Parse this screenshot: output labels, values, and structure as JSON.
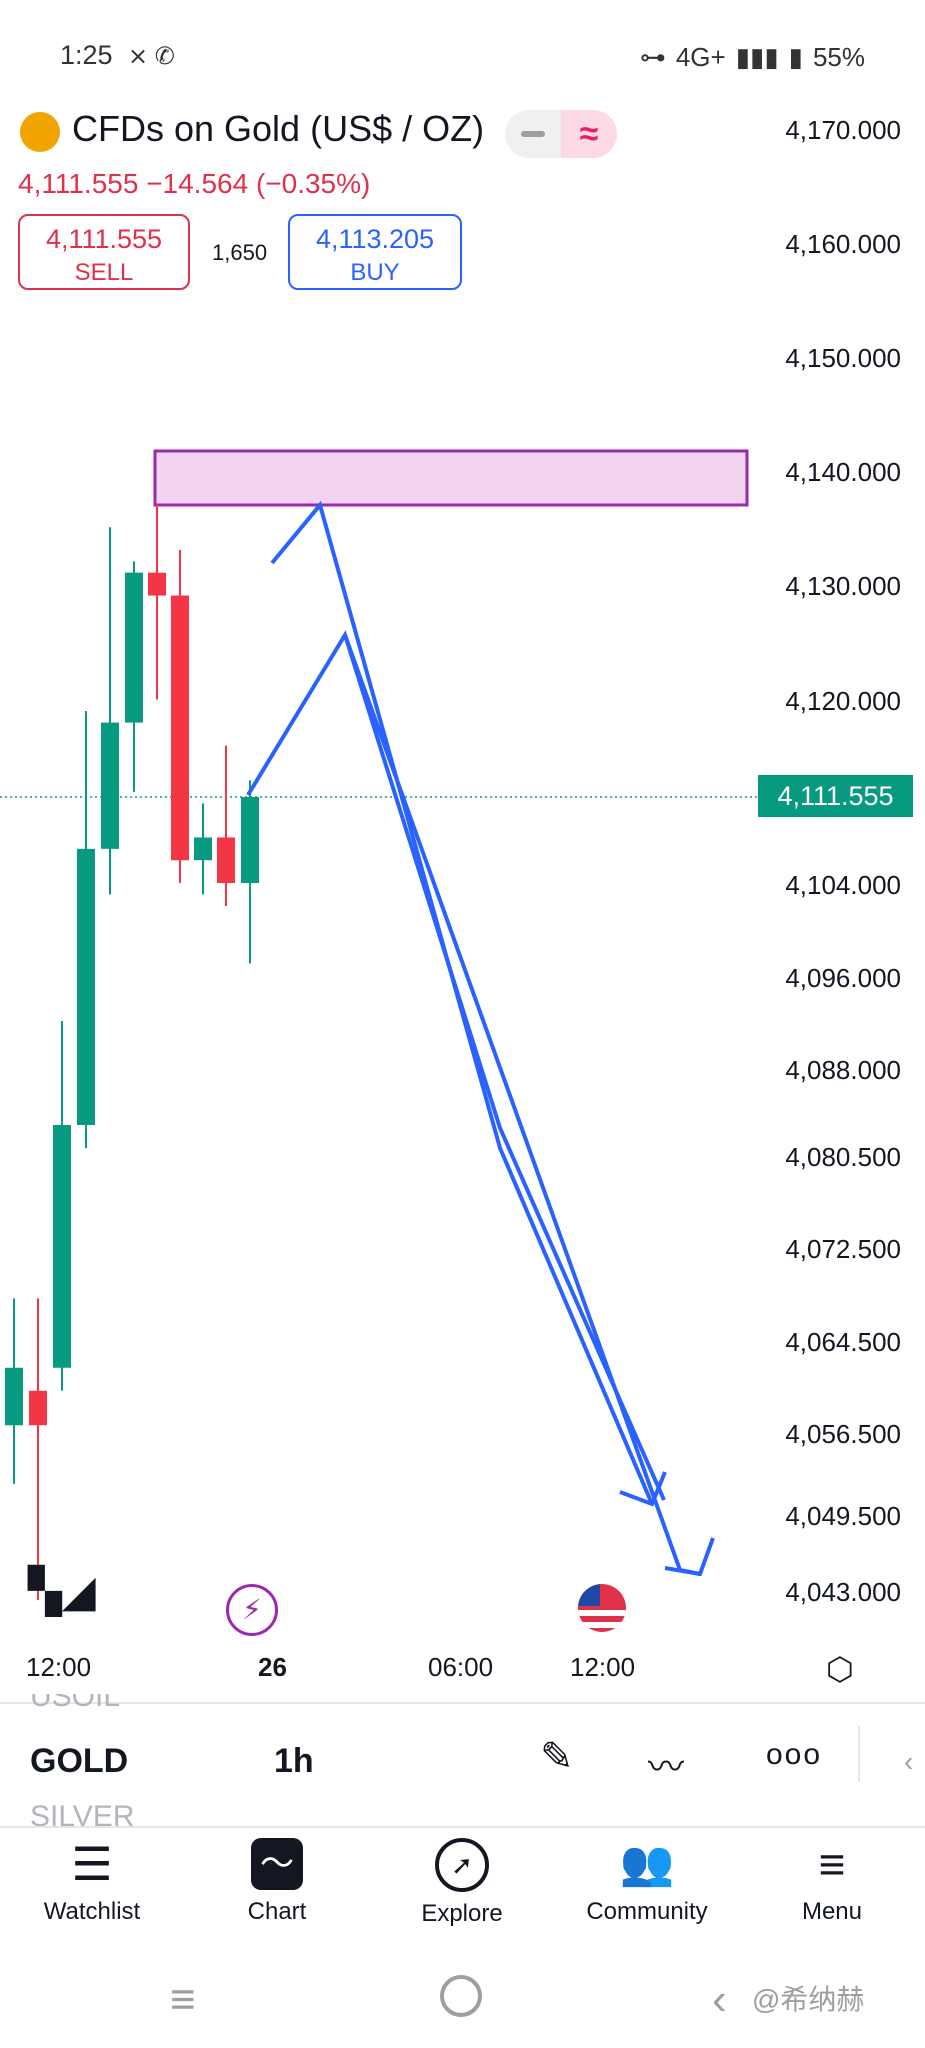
{
  "status_bar": {
    "time": "1:25",
    "battery": "55%",
    "network": "4G+"
  },
  "header": {
    "title": "CFDs on Gold (US$ / OZ)",
    "price_change": "4,111.555  −14.564 (−0.35%)",
    "sell_price": "4,111.555",
    "sell_label": "SELL",
    "spread": "1,650",
    "buy_price": "4,113.205",
    "buy_label": "BUY"
  },
  "price_axis": [
    "4,170.000",
    "4,160.000",
    "4,150.000",
    "4,140.000",
    "4,130.000",
    "4,120.000",
    "4,104.000",
    "4,096.000",
    "4,088.000",
    "4,080.500",
    "4,072.500",
    "4,064.500",
    "4,056.500",
    "4,049.500",
    "4,043.000"
  ],
  "current_price": "4,111.555",
  "time_axis": [
    "12:00",
    "26",
    "06:00",
    "12:00"
  ],
  "symbol_bar": {
    "prev_symbol": "USOIL",
    "symbol": "GOLD",
    "next_symbol": "SILVER",
    "interval": "1h"
  },
  "bottom_nav": [
    {
      "label": "Watchlist",
      "icon": "watchlist-icon"
    },
    {
      "label": "Chart",
      "icon": "chart-icon"
    },
    {
      "label": "Explore",
      "icon": "compass-icon"
    },
    {
      "label": "Community",
      "icon": "community-icon"
    },
    {
      "label": "Menu",
      "icon": "menu-icon"
    }
  ],
  "watermark": "@希纳赫",
  "colors": {
    "up": "#089981",
    "down": "#f23645",
    "drawing": "#2962ff",
    "zone": "#9c27b0"
  },
  "chart_data": {
    "type": "candlestick",
    "series": [
      {
        "open": 4057,
        "high": 4068,
        "low": 4052,
        "close": 4062
      },
      {
        "open": 4060,
        "high": 4068,
        "low": 4041,
        "close": 4057
      },
      {
        "open": 4062,
        "high": 4092,
        "low": 4060,
        "close": 4083
      },
      {
        "open": 4083,
        "high": 4119,
        "low": 4081,
        "close": 4107
      },
      {
        "open": 4107,
        "high": 4135,
        "low": 4103,
        "close": 4118
      },
      {
        "open": 4118,
        "high": 4132,
        "low": 4112,
        "close": 4131
      },
      {
        "open": 4131,
        "high": 4137,
        "low": 4120,
        "close": 4129
      },
      {
        "open": 4129,
        "high": 4133,
        "low": 4104,
        "close": 4106
      },
      {
        "open": 4106,
        "high": 4111,
        "low": 4103,
        "close": 4108
      },
      {
        "open": 4108,
        "high": 4116,
        "low": 4102,
        "close": 4104
      },
      {
        "open": 4104,
        "high": 4113,
        "low": 4097,
        "close": 4111.555
      }
    ],
    "zone": {
      "top": 4140.5,
      "bottom": 4138.2
    }
  }
}
